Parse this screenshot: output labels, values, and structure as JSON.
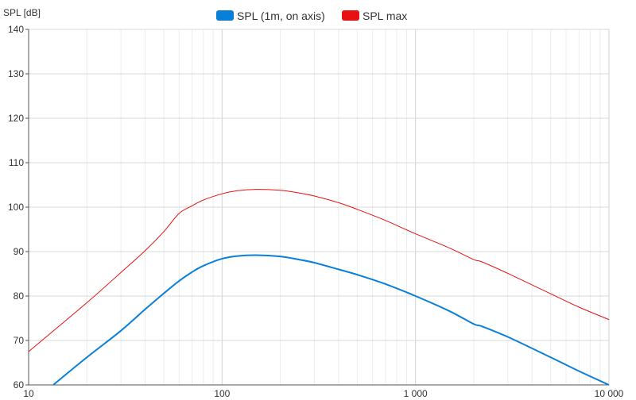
{
  "chart_data": {
    "type": "line",
    "ylabel": "SPL [dB]",
    "xscale": "log",
    "xlim": [
      10,
      10000
    ],
    "ylim": [
      60,
      140
    ],
    "xticks": [
      {
        "value": 10,
        "label": "10"
      },
      {
        "value": 100,
        "label": "100"
      },
      {
        "value": 1000,
        "label": "1 000"
      },
      {
        "value": 10000,
        "label": "10 000"
      }
    ],
    "yticks": [
      60,
      70,
      80,
      90,
      100,
      110,
      120,
      130,
      140
    ],
    "grid": true,
    "legend": "top-center",
    "series": [
      {
        "name": "SPL (1m, on axis)",
        "color": "#0a7fd8",
        "x": [
          13.4,
          20,
          30,
          40,
          50,
          60,
          70,
          80,
          100,
          120,
          150,
          200,
          250,
          300,
          400,
          500,
          700,
          1000,
          1500,
          2000,
          2200,
          3000,
          5000,
          7000,
          10000
        ],
        "y": [
          60,
          66.2,
          72.2,
          77,
          80.6,
          83.4,
          85.4,
          86.8,
          88.4,
          89.0,
          89.2,
          88.9,
          88.2,
          87.5,
          86.0,
          84.8,
          82.7,
          80.0,
          76.6,
          73.7,
          73.2,
          70.8,
          66.2,
          63.1,
          60
        ]
      },
      {
        "name": "SPL max",
        "color": "#e81010",
        "x": [
          10,
          20,
          30,
          40,
          50,
          60,
          70,
          80,
          100,
          120,
          150,
          200,
          250,
          300,
          400,
          500,
          700,
          1000,
          1500,
          2000,
          2200,
          3000,
          5000,
          7000,
          10000
        ],
        "y": [
          67.5,
          78.5,
          85.3,
          90.2,
          94.5,
          98.6,
          100.3,
          101.6,
          103.0,
          103.7,
          104.0,
          103.8,
          103.2,
          102.5,
          101.0,
          99.5,
          97.0,
          94.0,
          90.8,
          88.2,
          87.7,
          85.1,
          80.5,
          77.5,
          74.7
        ]
      }
    ]
  }
}
